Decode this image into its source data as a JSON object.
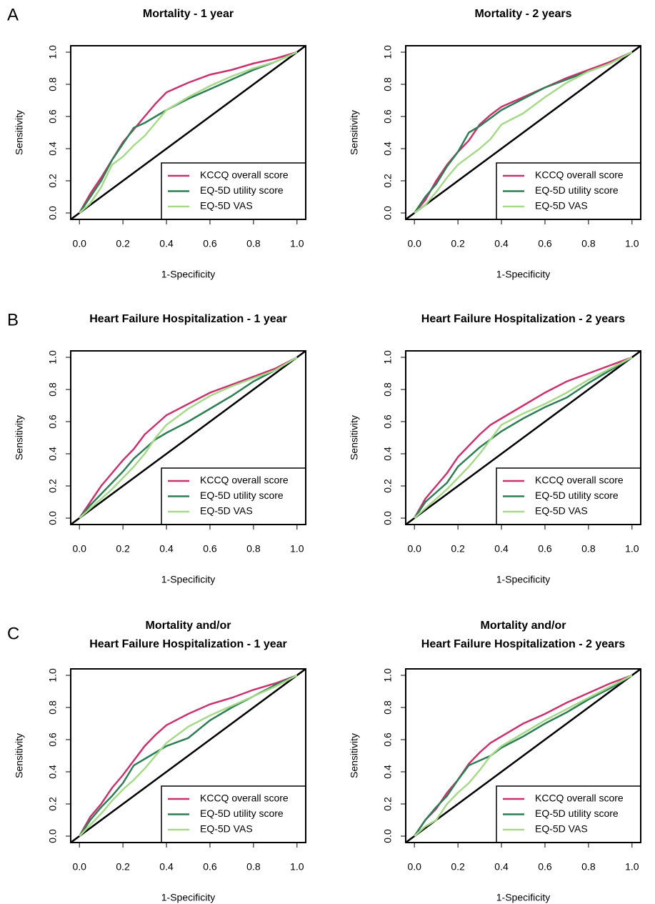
{
  "chart_data": [
    {
      "type": "line",
      "panel": "A",
      "title": [
        "Mortality - 1 year"
      ],
      "xlabel": "1-Specificity",
      "ylabel": "Sensitivity",
      "xlim": [
        -0.04,
        1.04
      ],
      "ylim": [
        -0.04,
        1.04
      ],
      "xticks": [
        {
          "value": 0,
          "label": "0.0"
        },
        0.2,
        0.4,
        0.6,
        0.8,
        {
          "value": 1,
          "label": "1.0"
        }
      ],
      "yticks": [
        {
          "value": 0,
          "label": "0.0"
        },
        0.2,
        0.4,
        0.6,
        0.8,
        {
          "value": 1,
          "label": "1.0"
        }
      ],
      "legend": "bottomright",
      "x": [
        0,
        0.05,
        0.1,
        0.15,
        0.2,
        0.25,
        0.3,
        0.35,
        0.4,
        0.5,
        0.6,
        0.7,
        0.8,
        0.9,
        1
      ],
      "series": [
        {
          "name": "KCCQ overall score",
          "color": "#c8336e",
          "values": [
            0,
            0.12,
            0.22,
            0.33,
            0.44,
            0.52,
            0.6,
            0.68,
            0.75,
            0.81,
            0.86,
            0.89,
            0.93,
            0.96,
            1
          ]
        },
        {
          "name": "EQ-5D utility score",
          "color": "#2e7d55",
          "values": [
            0,
            0.1,
            0.2,
            0.33,
            0.43,
            0.53,
            0.56,
            0.6,
            0.64,
            0.71,
            0.77,
            0.83,
            0.89,
            0.94,
            1
          ]
        },
        {
          "name": "EQ-5D VAS",
          "color": "#a6d98a",
          "values": [
            0,
            0.06,
            0.16,
            0.3,
            0.35,
            0.42,
            0.48,
            0.56,
            0.64,
            0.72,
            0.79,
            0.85,
            0.9,
            0.94,
            1
          ]
        }
      ]
    },
    {
      "type": "line",
      "title": [
        "Mortality - 2 years"
      ],
      "xlabel": "1-Specificity",
      "ylabel": "Sensitivity",
      "xlim": [
        -0.04,
        1.04
      ],
      "ylim": [
        -0.04,
        1.04
      ],
      "xticks": [
        {
          "value": 0,
          "label": "0.0"
        },
        0.2,
        0.4,
        0.6,
        0.8,
        {
          "value": 1,
          "label": "1.0"
        }
      ],
      "yticks": [
        {
          "value": 0,
          "label": "0.0"
        },
        0.2,
        0.4,
        0.6,
        0.8,
        {
          "value": 1,
          "label": "1.0"
        }
      ],
      "legend": "bottomright",
      "x": [
        0,
        0.05,
        0.1,
        0.15,
        0.2,
        0.25,
        0.3,
        0.35,
        0.4,
        0.5,
        0.6,
        0.7,
        0.8,
        0.9,
        1
      ],
      "series": [
        {
          "name": "KCCQ overall score",
          "color": "#c8336e",
          "values": [
            0,
            0.08,
            0.2,
            0.3,
            0.38,
            0.45,
            0.55,
            0.61,
            0.66,
            0.72,
            0.78,
            0.84,
            0.89,
            0.94,
            1
          ]
        },
        {
          "name": "EQ-5D utility score",
          "color": "#2e7d55",
          "values": [
            0,
            0.1,
            0.18,
            0.29,
            0.38,
            0.5,
            0.54,
            0.59,
            0.64,
            0.71,
            0.78,
            0.83,
            0.88,
            0.93,
            1
          ]
        },
        {
          "name": "EQ-5D VAS",
          "color": "#a6d98a",
          "values": [
            0,
            0.05,
            0.13,
            0.22,
            0.3,
            0.35,
            0.4,
            0.46,
            0.55,
            0.62,
            0.72,
            0.81,
            0.88,
            0.93,
            1
          ]
        }
      ]
    },
    {
      "type": "line",
      "panel": "B",
      "title": [
        "Heart Failure Hospitalization - 1 year"
      ],
      "xlabel": "1-Specificity",
      "ylabel": "Sensitivity",
      "xlim": [
        -0.04,
        1.04
      ],
      "ylim": [
        -0.04,
        1.04
      ],
      "xticks": [
        {
          "value": 0,
          "label": "0.0"
        },
        0.2,
        0.4,
        0.6,
        0.8,
        {
          "value": 1,
          "label": "1.0"
        }
      ],
      "yticks": [
        {
          "value": 0,
          "label": "0.0"
        },
        0.2,
        0.4,
        0.6,
        0.8,
        {
          "value": 1,
          "label": "1.0"
        }
      ],
      "legend": "bottomright",
      "x": [
        0,
        0.05,
        0.1,
        0.15,
        0.2,
        0.25,
        0.3,
        0.35,
        0.4,
        0.5,
        0.6,
        0.7,
        0.8,
        0.9,
        1
      ],
      "series": [
        {
          "name": "KCCQ overall score",
          "color": "#c8336e",
          "values": [
            0,
            0.1,
            0.2,
            0.28,
            0.36,
            0.43,
            0.52,
            0.58,
            0.64,
            0.71,
            0.78,
            0.83,
            0.88,
            0.93,
            1
          ]
        },
        {
          "name": "EQ-5D utility score",
          "color": "#2e7d55",
          "values": [
            0,
            0.08,
            0.15,
            0.22,
            0.29,
            0.37,
            0.43,
            0.49,
            0.53,
            0.6,
            0.68,
            0.76,
            0.85,
            0.92,
            1
          ]
        },
        {
          "name": "EQ-5D VAS",
          "color": "#a6d98a",
          "values": [
            0,
            0.06,
            0.12,
            0.18,
            0.25,
            0.32,
            0.4,
            0.5,
            0.58,
            0.68,
            0.76,
            0.82,
            0.87,
            0.92,
            1
          ]
        }
      ]
    },
    {
      "type": "line",
      "title": [
        "Heart Failure Hospitalization - 2 years"
      ],
      "xlabel": "1-Specificity",
      "ylabel": "Sensitivity",
      "xlim": [
        -0.04,
        1.04
      ],
      "ylim": [
        -0.04,
        1.04
      ],
      "xticks": [
        {
          "value": 0,
          "label": "0.0"
        },
        0.2,
        0.4,
        0.6,
        0.8,
        {
          "value": 1,
          "label": "1.0"
        }
      ],
      "yticks": [
        {
          "value": 0,
          "label": "0.0"
        },
        0.2,
        0.4,
        0.6,
        0.8,
        {
          "value": 1,
          "label": "1.0"
        }
      ],
      "legend": "bottomright",
      "x": [
        0,
        0.05,
        0.1,
        0.15,
        0.2,
        0.25,
        0.3,
        0.35,
        0.4,
        0.5,
        0.6,
        0.7,
        0.8,
        0.9,
        1
      ],
      "series": [
        {
          "name": "KCCQ overall score",
          "color": "#c8336e",
          "values": [
            0,
            0.12,
            0.2,
            0.28,
            0.38,
            0.45,
            0.52,
            0.58,
            0.62,
            0.7,
            0.78,
            0.85,
            0.9,
            0.95,
            1
          ]
        },
        {
          "name": "EQ-5D utility score",
          "color": "#2e7d55",
          "values": [
            0,
            0.1,
            0.16,
            0.22,
            0.32,
            0.38,
            0.44,
            0.49,
            0.54,
            0.62,
            0.69,
            0.75,
            0.84,
            0.92,
            1
          ]
        },
        {
          "name": "EQ-5D VAS",
          "color": "#a6d98a",
          "values": [
            0,
            0.06,
            0.12,
            0.18,
            0.25,
            0.32,
            0.4,
            0.49,
            0.58,
            0.65,
            0.71,
            0.78,
            0.86,
            0.93,
            1
          ]
        }
      ]
    },
    {
      "type": "line",
      "panel": "C",
      "title": [
        "Mortality and/or",
        "Heart Failure Hospitalization - 1 year"
      ],
      "xlabel": "1-Specificity",
      "ylabel": "Sensitivity",
      "xlim": [
        -0.04,
        1.04
      ],
      "ylim": [
        -0.04,
        1.04
      ],
      "xticks": [
        {
          "value": 0,
          "label": "0.0"
        },
        0.2,
        0.4,
        0.6,
        0.8,
        {
          "value": 1,
          "label": "1.0"
        }
      ],
      "yticks": [
        {
          "value": 0,
          "label": "0.0"
        },
        0.2,
        0.4,
        0.6,
        0.8,
        {
          "value": 1,
          "label": "1.0"
        }
      ],
      "legend": "bottomright",
      "x": [
        0,
        0.05,
        0.1,
        0.15,
        0.2,
        0.25,
        0.3,
        0.35,
        0.4,
        0.5,
        0.6,
        0.7,
        0.8,
        0.9,
        1
      ],
      "series": [
        {
          "name": "KCCQ overall score",
          "color": "#c8336e",
          "values": [
            0,
            0.12,
            0.2,
            0.3,
            0.38,
            0.47,
            0.56,
            0.63,
            0.69,
            0.76,
            0.82,
            0.86,
            0.91,
            0.95,
            1
          ]
        },
        {
          "name": "EQ-5D utility score",
          "color": "#2e7d55",
          "values": [
            0,
            0.1,
            0.18,
            0.25,
            0.33,
            0.44,
            0.48,
            0.52,
            0.56,
            0.61,
            0.72,
            0.8,
            0.87,
            0.94,
            1
          ]
        },
        {
          "name": "EQ-5D VAS",
          "color": "#a6d98a",
          "values": [
            0,
            0.07,
            0.14,
            0.22,
            0.29,
            0.35,
            0.42,
            0.5,
            0.58,
            0.68,
            0.75,
            0.81,
            0.87,
            0.93,
            1
          ]
        }
      ]
    },
    {
      "type": "line",
      "title": [
        "Mortality and/or",
        "Heart Failure Hospitalization - 2 years"
      ],
      "xlabel": "1-Specificity",
      "ylabel": "Sensitivity",
      "xlim": [
        -0.04,
        1.04
      ],
      "ylim": [
        -0.04,
        1.04
      ],
      "xticks": [
        {
          "value": 0,
          "label": "0.0"
        },
        0.2,
        0.4,
        0.6,
        0.8,
        {
          "value": 1,
          "label": "1.0"
        }
      ],
      "yticks": [
        {
          "value": 0,
          "label": "0.0"
        },
        0.2,
        0.4,
        0.6,
        0.8,
        {
          "value": 1,
          "label": "1.0"
        }
      ],
      "legend": "bottomright",
      "x": [
        0,
        0.05,
        0.1,
        0.15,
        0.2,
        0.25,
        0.3,
        0.35,
        0.4,
        0.5,
        0.6,
        0.7,
        0.8,
        0.9,
        1
      ],
      "series": [
        {
          "name": "KCCQ overall score",
          "color": "#c8336e",
          "values": [
            0,
            0.1,
            0.17,
            0.27,
            0.35,
            0.45,
            0.52,
            0.58,
            0.62,
            0.7,
            0.76,
            0.83,
            0.89,
            0.95,
            1
          ]
        },
        {
          "name": "EQ-5D utility score",
          "color": "#2e7d55",
          "values": [
            0,
            0.1,
            0.18,
            0.25,
            0.35,
            0.44,
            0.47,
            0.5,
            0.55,
            0.62,
            0.7,
            0.77,
            0.85,
            0.92,
            1
          ]
        },
        {
          "name": "EQ-5D VAS",
          "color": "#a6d98a",
          "values": [
            0,
            0.06,
            0.1,
            0.2,
            0.27,
            0.33,
            0.41,
            0.5,
            0.56,
            0.64,
            0.72,
            0.79,
            0.86,
            0.93,
            1
          ]
        }
      ]
    }
  ]
}
